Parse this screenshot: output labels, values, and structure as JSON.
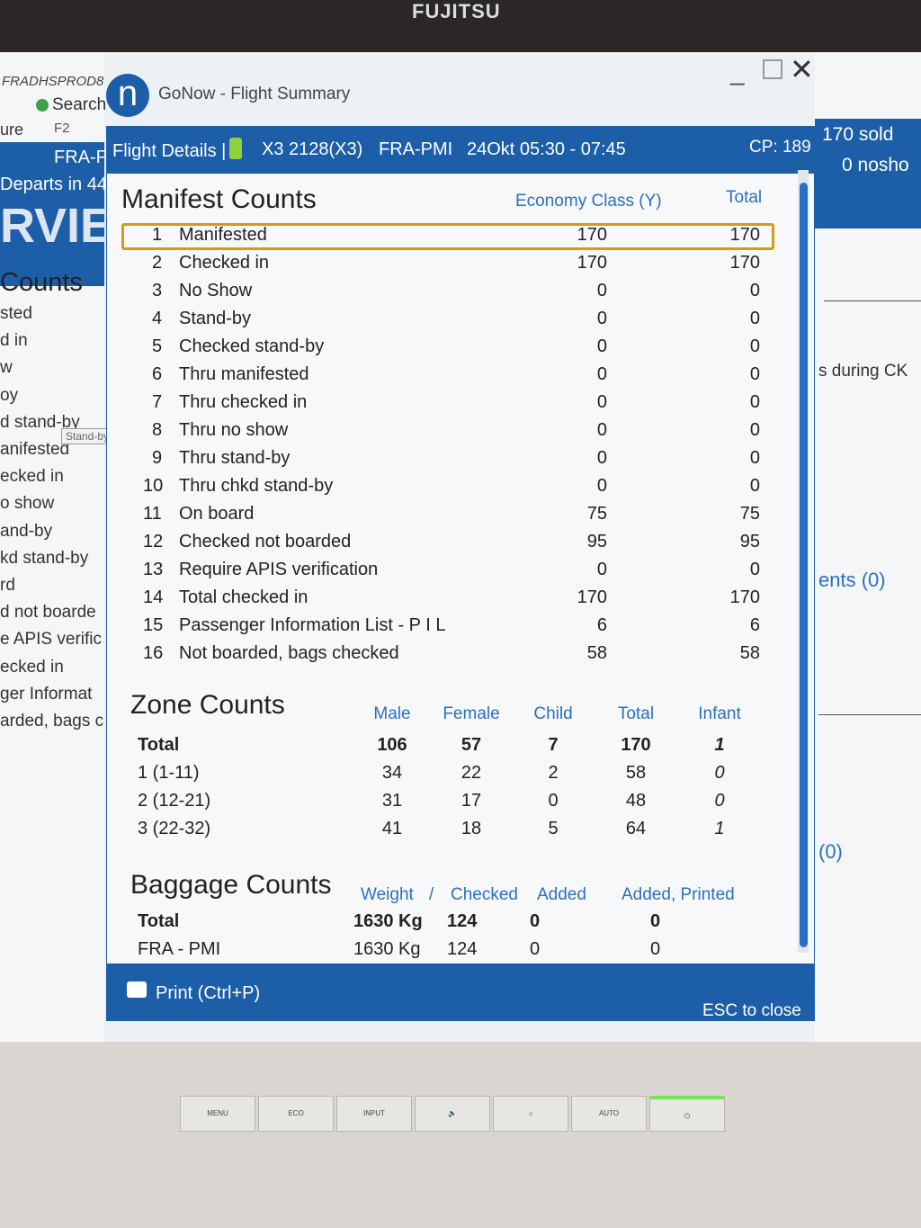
{
  "monitor": {
    "brand": "FUJITSU",
    "buttons": [
      "MENU",
      "ECO",
      "INPUT",
      "🔈",
      "☼",
      "AUTO",
      "⏻"
    ]
  },
  "background_left": {
    "server": "FRADHSPROD8",
    "search": "Search",
    "key_label": "ure",
    "key": "F2",
    "route": "FRA-P",
    "departs": "Departs in 44",
    "banner": "RVIE",
    "section": "Counts",
    "items": [
      "sted",
      "d in",
      "w",
      "oy",
      "d stand-by",
      "anifested",
      "ecked in",
      "o show",
      "and-by",
      "kd stand-by",
      "rd",
      "d not boarde",
      "e APIS verific",
      "ecked in",
      "ger Informat",
      "arded, bags c"
    ],
    "tooltip": "Stand-by"
  },
  "background_right": {
    "sold": "170 sold",
    "noshow": "0 nosho",
    "during": "s during CK",
    "ents": "ents (0)",
    "zero": "(0)"
  },
  "window": {
    "title": "GoNow - Flight Summary",
    "logo": "n"
  },
  "header": {
    "label": "Flight Details |",
    "flight": "X3 2128(X3)",
    "route": "FRA-PMI",
    "date_time": "24Okt 05:30 - 07:45",
    "cp": "CP: 189"
  },
  "manifest": {
    "title": "Manifest Counts",
    "col_economy": "Economy Class (Y)",
    "col_total": "Total",
    "rows": [
      {
        "n": "1",
        "label": "Manifested",
        "economy": "170",
        "total": "170"
      },
      {
        "n": "2",
        "label": "Checked in",
        "economy": "170",
        "total": "170"
      },
      {
        "n": "3",
        "label": "No Show",
        "economy": "0",
        "total": "0"
      },
      {
        "n": "4",
        "label": "Stand-by",
        "economy": "0",
        "total": "0"
      },
      {
        "n": "5",
        "label": "Checked stand-by",
        "economy": "0",
        "total": "0"
      },
      {
        "n": "6",
        "label": "Thru manifested",
        "economy": "0",
        "total": "0"
      },
      {
        "n": "7",
        "label": "Thru checked in",
        "economy": "0",
        "total": "0"
      },
      {
        "n": "8",
        "label": "Thru no show",
        "economy": "0",
        "total": "0"
      },
      {
        "n": "9",
        "label": "Thru stand-by",
        "economy": "0",
        "total": "0"
      },
      {
        "n": "10",
        "label": "Thru chkd stand-by",
        "economy": "0",
        "total": "0"
      },
      {
        "n": "11",
        "label": "On board",
        "economy": "75",
        "total": "75"
      },
      {
        "n": "12",
        "label": "Checked not boarded",
        "economy": "95",
        "total": "95"
      },
      {
        "n": "13",
        "label": "Require APIS verification",
        "economy": "0",
        "total": "0"
      },
      {
        "n": "14",
        "label": "Total checked in",
        "economy": "170",
        "total": "170"
      },
      {
        "n": "15",
        "label": "Passenger Information List - P I L",
        "economy": "6",
        "total": "6"
      },
      {
        "n": "16",
        "label": "Not boarded, bags checked",
        "economy": "58",
        "total": "58"
      }
    ]
  },
  "zone": {
    "title": "Zone Counts",
    "cols": [
      "Male",
      "Female",
      "Child",
      "Total",
      "Infant"
    ],
    "rows": [
      {
        "label": "Total",
        "v": [
          "106",
          "57",
          "7",
          "170",
          "1"
        ]
      },
      {
        "label": "1 (1-11)",
        "v": [
          "34",
          "22",
          "2",
          "58",
          "0"
        ]
      },
      {
        "label": "2 (12-21)",
        "v": [
          "31",
          "17",
          "0",
          "48",
          "0"
        ]
      },
      {
        "label": "3 (22-32)",
        "v": [
          "41",
          "18",
          "5",
          "64",
          "1"
        ]
      }
    ]
  },
  "baggage": {
    "title": "Baggage Counts",
    "cols": [
      "Weight",
      "/",
      "Checked",
      "Added",
      "Added, Printed"
    ],
    "rows": [
      {
        "label": "Total",
        "v": [
          "1630 Kg",
          "124",
          "0",
          "0"
        ]
      },
      {
        "label": "FRA - PMI",
        "v": [
          "1630 Kg",
          "124",
          "0",
          "0"
        ]
      }
    ]
  },
  "footer": {
    "print": "Print (Ctrl+P)",
    "close": "ESC to close"
  },
  "colors": {
    "header_blue": "#1d5ea8",
    "column_blue": "#2a6fc4",
    "highlight": "#d49a1e"
  }
}
